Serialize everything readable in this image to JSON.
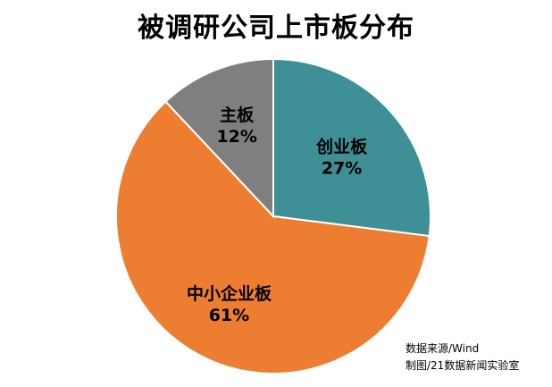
{
  "chart_data": {
    "type": "pie",
    "title": "被调研公司上市板分布",
    "slices": [
      {
        "label": "创业板",
        "value": 27,
        "value_label": "27%",
        "color": "#3E8F96"
      },
      {
        "label": "中小企业板",
        "value": 61,
        "value_label": "61%",
        "color": "#ED7D31"
      },
      {
        "label": "主板",
        "value": 12,
        "value_label": "12%",
        "color": "#7F7F7F"
      }
    ],
    "start_angle": "12 o'clock",
    "direction": "clockwise",
    "legend": "none",
    "slice_border_color": "#ffffff"
  },
  "notes": {
    "source": "数据来源/Wind",
    "credit": "制图/21数据新闻实验室"
  }
}
